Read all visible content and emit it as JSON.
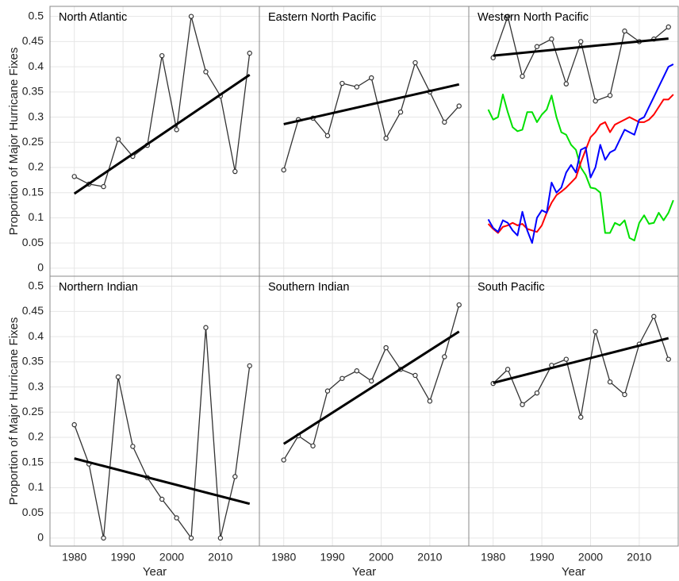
{
  "chart_data": [
    {
      "type": "line",
      "title": "North Atlantic",
      "ylabel": "Proportion of Major Hurricane Fixes",
      "xlim": [
        1975,
        2018
      ],
      "ylim": [
        -0.016,
        0.52
      ],
      "xticks": [
        1980,
        1990,
        2000,
        2010
      ],
      "yticks": [
        0,
        0.05,
        0.1,
        0.15,
        0.2,
        0.25,
        0.3,
        0.35,
        0.4,
        0.45,
        0.5
      ],
      "grid": true,
      "show_xtick_labels": false,
      "show_ytick_labels": true,
      "series": [
        {
          "color": "#333333",
          "line_style": "thin",
          "marker": true,
          "x": [
            1980,
            1983,
            1986,
            1989,
            1992,
            1995,
            1998,
            2001,
            2004,
            2007,
            2010,
            2013,
            2016
          ],
          "values": [
            0.182,
            0.167,
            0.162,
            0.256,
            0.222,
            0.244,
            0.422,
            0.275,
            0.5,
            0.39,
            0.342,
            0.192,
            0.427
          ]
        },
        {
          "color": "#000000",
          "line_style": "thick",
          "marker": false,
          "x": [
            1980,
            2016
          ],
          "values": [
            0.148,
            0.384
          ]
        }
      ]
    },
    {
      "type": "line",
      "title": "Eastern North Pacific",
      "xlim": [
        1975,
        2018
      ],
      "ylim": [
        -0.016,
        0.52
      ],
      "xticks": [
        1980,
        1990,
        2000,
        2010
      ],
      "yticks": [
        0,
        0.05,
        0.1,
        0.15,
        0.2,
        0.25,
        0.3,
        0.35,
        0.4,
        0.45,
        0.5
      ],
      "grid": true,
      "show_xtick_labels": false,
      "show_ytick_labels": false,
      "series": [
        {
          "color": "#333333",
          "line_style": "thin",
          "marker": true,
          "x": [
            1980,
            1983,
            1986,
            1989,
            1992,
            1995,
            1998,
            2001,
            2004,
            2007,
            2010,
            2013,
            2016
          ],
          "values": [
            0.195,
            0.295,
            0.298,
            0.263,
            0.367,
            0.36,
            0.378,
            0.258,
            0.31,
            0.408,
            0.35,
            0.29,
            0.322
          ]
        },
        {
          "color": "#000000",
          "line_style": "thick",
          "marker": false,
          "x": [
            1980,
            2016
          ],
          "values": [
            0.286,
            0.365
          ]
        }
      ]
    },
    {
      "type": "line",
      "title": "Western North Pacific",
      "xlim": [
        1975,
        2018
      ],
      "ylim": [
        -0.016,
        0.52
      ],
      "xticks": [
        1980,
        1990,
        2000,
        2010
      ],
      "yticks": [
        0,
        0.05,
        0.1,
        0.15,
        0.2,
        0.25,
        0.3,
        0.35,
        0.4,
        0.45,
        0.5
      ],
      "grid": true,
      "show_xtick_labels": false,
      "show_ytick_labels": false,
      "series": [
        {
          "color": "#333333",
          "line_style": "thin",
          "marker": true,
          "x": [
            1980,
            1983,
            1986,
            1989,
            1992,
            1995,
            1998,
            2001,
            2004,
            2007,
            2010,
            2013,
            2016
          ],
          "values": [
            0.418,
            0.5,
            0.381,
            0.44,
            0.455,
            0.366,
            0.45,
            0.332,
            0.343,
            0.471,
            0.45,
            0.455,
            0.479
          ]
        },
        {
          "color": "#000000",
          "line_style": "thick",
          "marker": false,
          "x": [
            1980,
            2016
          ],
          "values": [
            0.422,
            0.456
          ]
        },
        {
          "color": "#00e000",
          "line_style": "color",
          "marker": false,
          "x": [
            1979,
            1980,
            1981,
            1982,
            1983,
            1984,
            1985,
            1986,
            1987,
            1988,
            1989,
            1990,
            1991,
            1992,
            1993,
            1994,
            1995,
            1996,
            1997,
            1998,
            1999,
            2000,
            2001,
            2002,
            2003,
            2004,
            2005,
            2006,
            2007,
            2008,
            2009,
            2010,
            2011,
            2012,
            2013,
            2014,
            2015,
            2016,
            2017
          ],
          "values": [
            0.315,
            0.295,
            0.3,
            0.345,
            0.31,
            0.28,
            0.272,
            0.275,
            0.31,
            0.31,
            0.29,
            0.305,
            0.315,
            0.343,
            0.3,
            0.27,
            0.265,
            0.245,
            0.235,
            0.2,
            0.185,
            0.16,
            0.158,
            0.15,
            0.07,
            0.07,
            0.09,
            0.085,
            0.095,
            0.06,
            0.055,
            0.09,
            0.105,
            0.088,
            0.09,
            0.11,
            0.095,
            0.11,
            0.135
          ]
        },
        {
          "color": "#ff0000",
          "line_style": "color",
          "marker": false,
          "x": [
            1979,
            1980,
            1981,
            1982,
            1983,
            1984,
            1985,
            1986,
            1987,
            1988,
            1989,
            1990,
            1991,
            1992,
            1993,
            1994,
            1995,
            1996,
            1997,
            1998,
            1999,
            2000,
            2001,
            2002,
            2003,
            2004,
            2005,
            2006,
            2007,
            2008,
            2009,
            2010,
            2011,
            2012,
            2013,
            2014,
            2015,
            2016,
            2017
          ],
          "values": [
            0.088,
            0.078,
            0.07,
            0.082,
            0.085,
            0.09,
            0.085,
            0.088,
            0.078,
            0.075,
            0.072,
            0.085,
            0.11,
            0.13,
            0.145,
            0.152,
            0.16,
            0.17,
            0.18,
            0.21,
            0.235,
            0.26,
            0.27,
            0.285,
            0.29,
            0.27,
            0.285,
            0.29,
            0.295,
            0.3,
            0.295,
            0.29,
            0.29,
            0.295,
            0.305,
            0.32,
            0.335,
            0.335,
            0.345
          ]
        },
        {
          "color": "#0000ff",
          "line_style": "color",
          "marker": false,
          "x": [
            1979,
            1980,
            1981,
            1982,
            1983,
            1984,
            1985,
            1986,
            1987,
            1988,
            1989,
            1990,
            1991,
            1992,
            1993,
            1994,
            1995,
            1996,
            1997,
            1998,
            1999,
            2000,
            2001,
            2002,
            2003,
            2004,
            2005,
            2006,
            2007,
            2008,
            2009,
            2010,
            2011,
            2012,
            2013,
            2014,
            2015,
            2016,
            2017
          ],
          "values": [
            0.097,
            0.08,
            0.072,
            0.095,
            0.09,
            0.075,
            0.065,
            0.112,
            0.075,
            0.05,
            0.1,
            0.115,
            0.11,
            0.17,
            0.15,
            0.16,
            0.19,
            0.205,
            0.19,
            0.235,
            0.24,
            0.18,
            0.2,
            0.245,
            0.215,
            0.23,
            0.235,
            0.255,
            0.275,
            0.27,
            0.265,
            0.295,
            0.3,
            0.32,
            0.34,
            0.36,
            0.38,
            0.4,
            0.405
          ]
        }
      ]
    },
    {
      "type": "line",
      "title": "Northern Indian",
      "ylabel": "Proportion of Major Hurricane Fixes",
      "xlabel": "Year",
      "xlim": [
        1975,
        2018
      ],
      "ylim": [
        -0.016,
        0.52
      ],
      "xticks": [
        1980,
        1990,
        2000,
        2010
      ],
      "yticks": [
        0,
        0.05,
        0.1,
        0.15,
        0.2,
        0.25,
        0.3,
        0.35,
        0.4,
        0.45,
        0.5
      ],
      "grid": true,
      "show_xtick_labels": true,
      "show_ytick_labels": true,
      "series": [
        {
          "color": "#333333",
          "line_style": "thin",
          "marker": true,
          "x": [
            1980,
            1983,
            1986,
            1989,
            1992,
            1995,
            1998,
            2001,
            2004,
            2007,
            2010,
            2013,
            2016
          ],
          "values": [
            0.225,
            0.147,
            0,
            0.32,
            0.182,
            0.12,
            0.077,
            0.04,
            0,
            0.418,
            0,
            0.122,
            0.342
          ]
        },
        {
          "color": "#000000",
          "line_style": "thick",
          "marker": false,
          "x": [
            1980,
            2016
          ],
          "values": [
            0.158,
            0.068
          ]
        }
      ]
    },
    {
      "type": "line",
      "title": "Southern Indian",
      "xlabel": "Year",
      "xlim": [
        1975,
        2018
      ],
      "ylim": [
        -0.016,
        0.52
      ],
      "xticks": [
        1980,
        1990,
        2000,
        2010
      ],
      "yticks": [
        0,
        0.05,
        0.1,
        0.15,
        0.2,
        0.25,
        0.3,
        0.35,
        0.4,
        0.45,
        0.5
      ],
      "grid": true,
      "show_xtick_labels": true,
      "show_ytick_labels": false,
      "series": [
        {
          "color": "#333333",
          "line_style": "thin",
          "marker": true,
          "x": [
            1980,
            1983,
            1986,
            1989,
            1992,
            1995,
            1998,
            2001,
            2004,
            2007,
            2010,
            2013,
            2016
          ],
          "values": [
            0.155,
            0.203,
            0.183,
            0.292,
            0.317,
            0.332,
            0.312,
            0.378,
            0.335,
            0.323,
            0.272,
            0.36,
            0.463
          ]
        },
        {
          "color": "#000000",
          "line_style": "thick",
          "marker": false,
          "x": [
            1980,
            2016
          ],
          "values": [
            0.187,
            0.41
          ]
        }
      ]
    },
    {
      "type": "line",
      "title": "South Pacific",
      "xlabel": "Year",
      "xlim": [
        1975,
        2018
      ],
      "ylim": [
        -0.016,
        0.52
      ],
      "xticks": [
        1980,
        1990,
        2000,
        2010
      ],
      "yticks": [
        0,
        0.05,
        0.1,
        0.15,
        0.2,
        0.25,
        0.3,
        0.35,
        0.4,
        0.45,
        0.5
      ],
      "grid": true,
      "show_xtick_labels": true,
      "show_ytick_labels": false,
      "series": [
        {
          "color": "#333333",
          "line_style": "thin",
          "marker": true,
          "x": [
            1980,
            1983,
            1986,
            1989,
            1992,
            1995,
            1998,
            2001,
            2004,
            2007,
            2010,
            2013,
            2016
          ],
          "values": [
            0.307,
            0.335,
            0.265,
            0.288,
            0.343,
            0.355,
            0.24,
            0.41,
            0.31,
            0.285,
            0.385,
            0.44,
            0.355
          ]
        },
        {
          "color": "#000000",
          "line_style": "thick",
          "marker": false,
          "x": [
            1980,
            2016
          ],
          "values": [
            0.308,
            0.397
          ]
        }
      ]
    }
  ]
}
